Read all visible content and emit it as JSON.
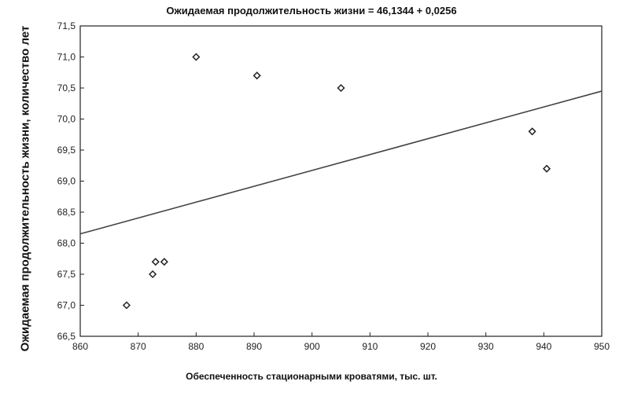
{
  "chart_data": {
    "type": "scatter",
    "title": "Ожидаемая продолжительность жизни = 46,1344 + 0,0256",
    "xlabel": "Обеспеченность стационарными кроватями, тыс. шт.",
    "ylabel": "Ожидаемая продолжительность жизни, количество лет",
    "xlim": [
      860,
      950
    ],
    "ylim": [
      66.5,
      71.5
    ],
    "x_ticks": [
      "860",
      "870",
      "880",
      "890",
      "900",
      "910",
      "920",
      "930",
      "940",
      "950"
    ],
    "y_ticks": [
      "66,5",
      "67,0",
      "67,5",
      "68,0",
      "68,5",
      "69,0",
      "69,5",
      "70,0",
      "70,5",
      "71,0",
      "71,5"
    ],
    "grid": false,
    "series": [
      {
        "marker": "diamond",
        "points": [
          {
            "x": 868,
            "y": 67.0
          },
          {
            "x": 872.5,
            "y": 67.5
          },
          {
            "x": 873,
            "y": 67.7
          },
          {
            "x": 874.5,
            "y": 67.7
          },
          {
            "x": 880,
            "y": 71.0
          },
          {
            "x": 890.5,
            "y": 70.7
          },
          {
            "x": 905,
            "y": 70.5
          },
          {
            "x": 938,
            "y": 69.8
          },
          {
            "x": 940.5,
            "y": 69.2
          }
        ]
      }
    ],
    "fit_line": {
      "x": [
        860,
        950
      ],
      "y": [
        68.15,
        70.45
      ]
    },
    "colors": {
      "line": "#444444",
      "marker": "#222222",
      "axis": "#222222"
    }
  }
}
